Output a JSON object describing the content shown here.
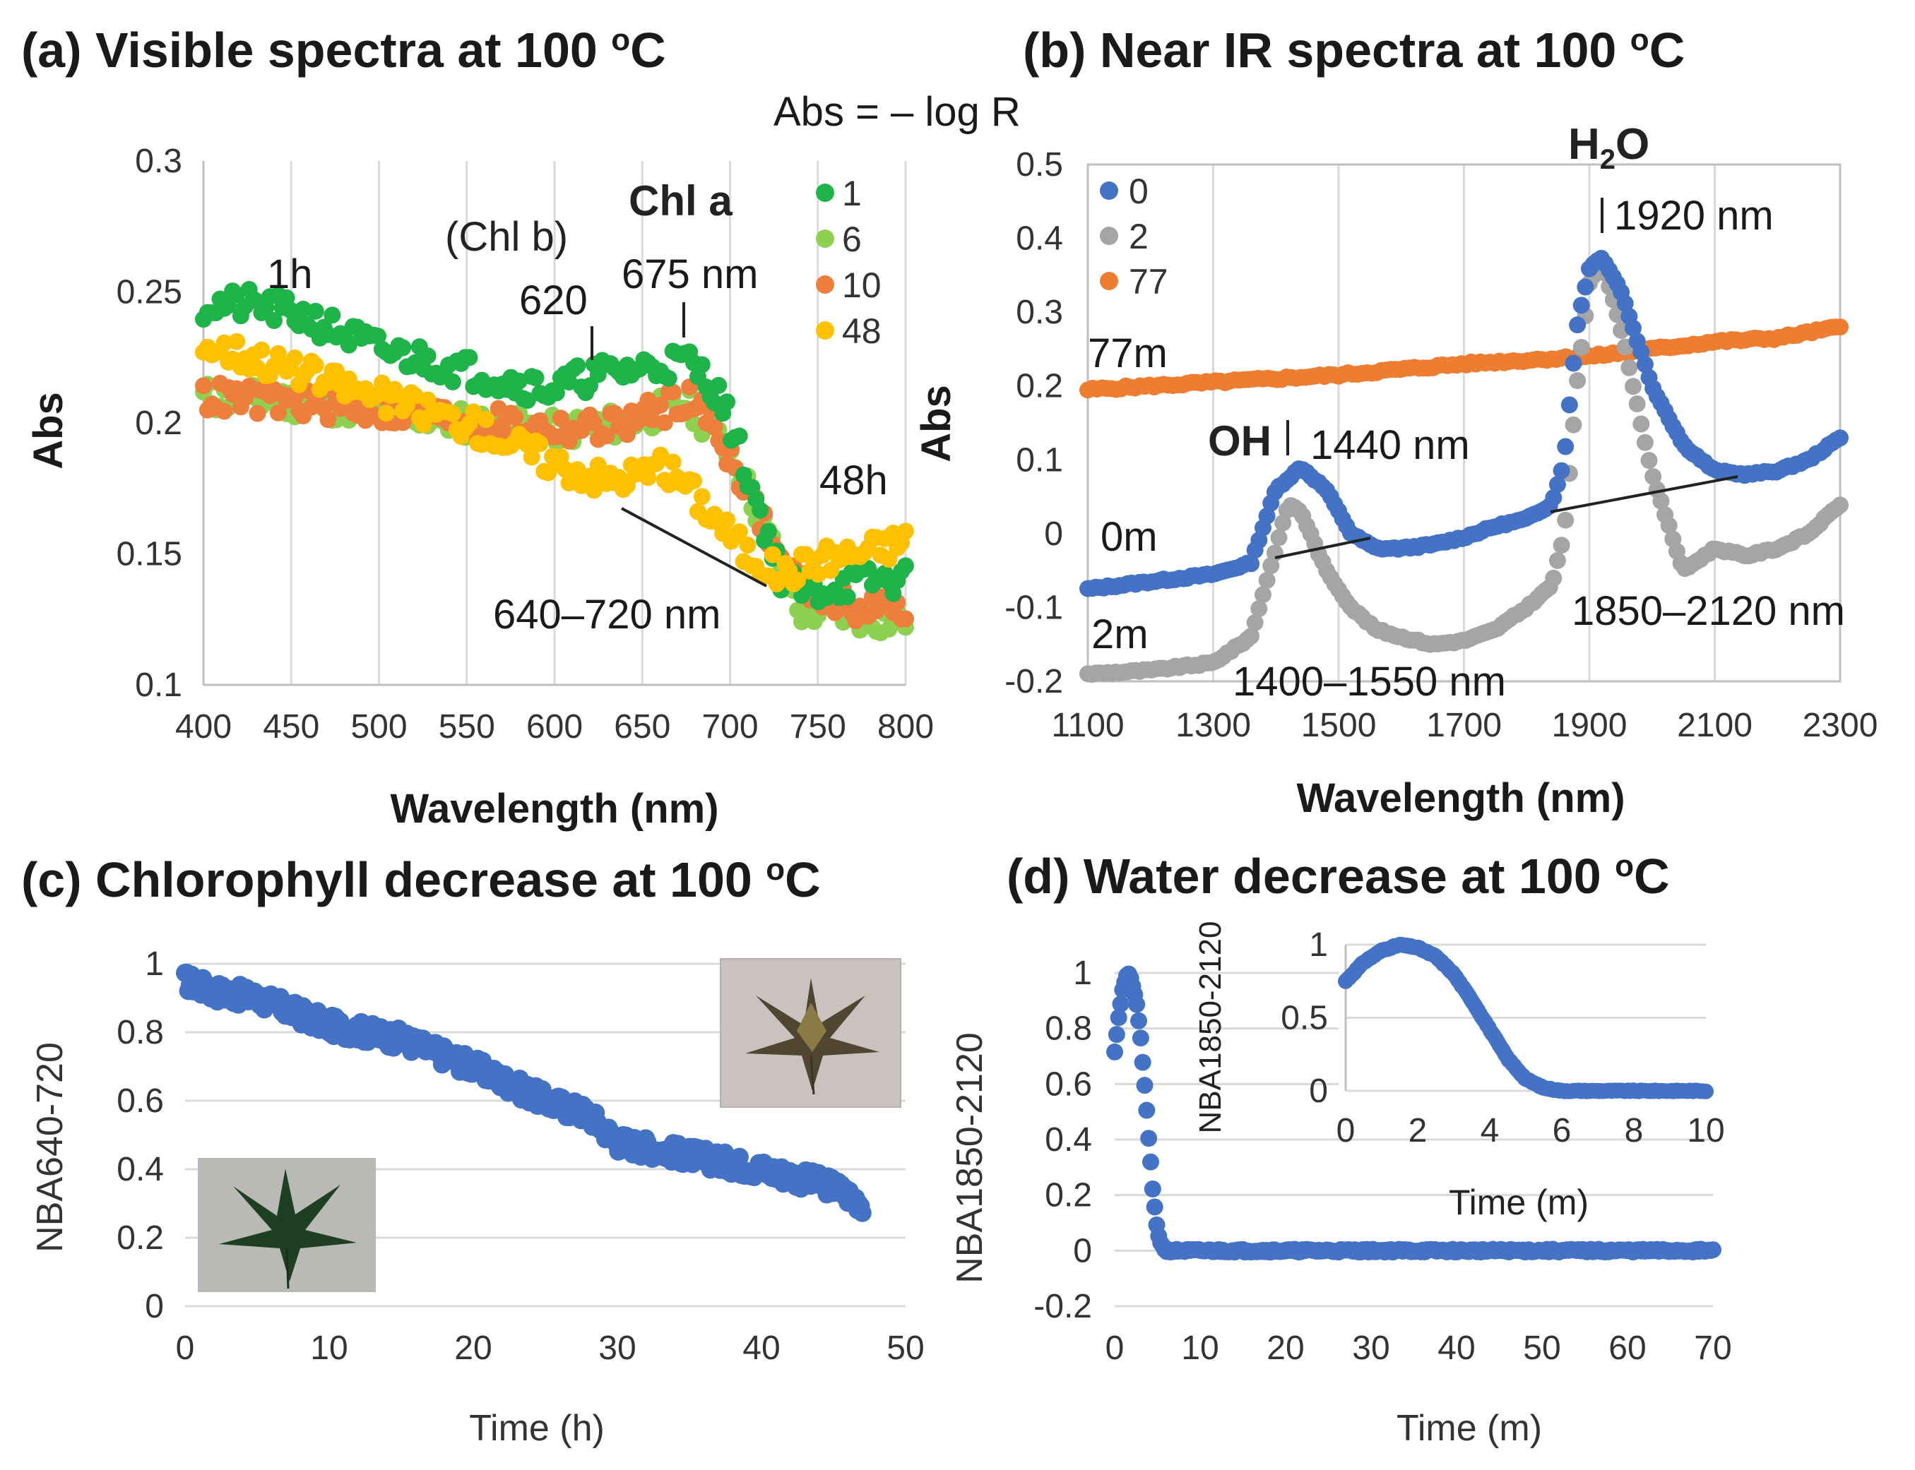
{
  "figure_label": "Abs = – log R",
  "colors": {
    "blue": "#4472C4",
    "gray": "#A5A5A5",
    "orange": "#ED7D31",
    "green": "#1FB449",
    "lightgreen": "#8ED151",
    "orange2": "#EE7E3B",
    "yellow": "#FFC000"
  },
  "chart_data": [
    {
      "id": "a",
      "type": "scatter",
      "title_prefix": "(a) Visible spectra at 100 ",
      "title_sup": "o",
      "title_suffix": "C",
      "xlabel": "Wavelength (nm)",
      "ylabel": "Abs",
      "xlim": [
        400,
        800
      ],
      "ylim": [
        0.1,
        0.3
      ],
      "xticks": [
        "400",
        "450",
        "500",
        "550",
        "600",
        "650",
        "700",
        "750",
        "800"
      ],
      "yticks": [
        "0.1",
        "0.15",
        "0.2",
        "0.25",
        "0.3"
      ],
      "legend": [
        "1",
        "6",
        "10",
        "48"
      ],
      "series": [
        {
          "name": "1",
          "color": "#1FB449",
          "x": [
            400,
            430,
            460,
            500,
            540,
            580,
            600,
            620,
            640,
            660,
            675,
            690,
            700,
            715,
            730,
            745,
            760,
            780,
            800
          ],
          "y": [
            0.245,
            0.245,
            0.24,
            0.228,
            0.222,
            0.215,
            0.213,
            0.218,
            0.22,
            0.222,
            0.224,
            0.215,
            0.2,
            0.17,
            0.14,
            0.135,
            0.138,
            0.14,
            0.14
          ]
        },
        {
          "name": "6",
          "color": "#8ED151",
          "x": [
            400,
            450,
            500,
            550,
            600,
            640,
            675,
            700,
            720,
            740,
            760,
            780,
            800
          ],
          "y": [
            0.21,
            0.208,
            0.205,
            0.2,
            0.197,
            0.2,
            0.208,
            0.19,
            0.16,
            0.128,
            0.128,
            0.125,
            0.125
          ]
        },
        {
          "name": "10",
          "color": "#EE7E3B",
          "x": [
            400,
            450,
            500,
            550,
            600,
            620,
            640,
            660,
            675,
            690,
            710,
            730,
            750,
            770,
            800
          ],
          "y": [
            0.21,
            0.208,
            0.205,
            0.201,
            0.198,
            0.198,
            0.2,
            0.205,
            0.21,
            0.2,
            0.175,
            0.145,
            0.135,
            0.13,
            0.13
          ]
        },
        {
          "name": "48",
          "color": "#FFC000",
          "x": [
            400,
            430,
            460,
            500,
            550,
            600,
            630,
            660,
            670,
            690,
            710,
            730,
            750,
            770,
            800
          ],
          "y": [
            0.23,
            0.225,
            0.218,
            0.21,
            0.2,
            0.185,
            0.178,
            0.182,
            0.18,
            0.165,
            0.15,
            0.142,
            0.148,
            0.15,
            0.155
          ]
        }
      ],
      "annotations": {
        "chl_a": "Chl a",
        "chl_b": "(Chl b)",
        "h1": "1h",
        "p620": "620",
        "p675": "675 nm",
        "h48": "48h",
        "range": "640–720 nm"
      }
    },
    {
      "id": "b",
      "type": "scatter",
      "title_prefix": "(b) Near IR spectra at 100 ",
      "title_sup": "o",
      "title_suffix": "C",
      "xlabel": "Wavelength (nm)",
      "ylabel": "Abs",
      "xlim": [
        1100,
        2300
      ],
      "ylim": [
        -0.2,
        0.5
      ],
      "xticks": [
        "1100",
        "1300",
        "1500",
        "1700",
        "1900",
        "2100",
        "2300"
      ],
      "yticks": [
        "-0.2",
        "-0.1",
        "0",
        "0.1",
        "0.2",
        "0.3",
        "0.4",
        "0.5"
      ],
      "legend": [
        "0",
        "2",
        "77"
      ],
      "series": [
        {
          "name": "0",
          "color": "#4472C4",
          "x": [
            1100,
            1200,
            1300,
            1360,
            1400,
            1440,
            1480,
            1520,
            1560,
            1600,
            1650,
            1700,
            1750,
            1800,
            1840,
            1860,
            1880,
            1900,
            1920,
            1950,
            2000,
            2050,
            2100,
            2150,
            2200,
            2250,
            2300
          ],
          "y": [
            -0.075,
            -0.065,
            -0.055,
            -0.04,
            0.06,
            0.09,
            0.06,
            0.0,
            -0.02,
            -0.02,
            -0.015,
            -0.005,
            0.01,
            0.02,
            0.04,
            0.1,
            0.28,
            0.36,
            0.375,
            0.33,
            0.2,
            0.12,
            0.085,
            0.08,
            0.085,
            0.1,
            0.13
          ]
        },
        {
          "name": "2",
          "color": "#A5A5A5",
          "x": [
            1100,
            1200,
            1300,
            1360,
            1400,
            1420,
            1440,
            1480,
            1520,
            1560,
            1600,
            1650,
            1700,
            1750,
            1800,
            1840,
            1860,
            1880,
            1900,
            1920,
            1950,
            2000,
            2050,
            2100,
            2150,
            2200,
            2250,
            2300
          ],
          "y": [
            -0.19,
            -0.185,
            -0.175,
            -0.14,
            -0.02,
            0.04,
            0.03,
            -0.05,
            -0.1,
            -0.13,
            -0.14,
            -0.15,
            -0.145,
            -0.13,
            -0.1,
            -0.07,
            0.0,
            0.2,
            0.34,
            0.37,
            0.28,
            0.08,
            -0.05,
            -0.02,
            -0.03,
            -0.02,
            0.0,
            0.04
          ]
        },
        {
          "name": "77",
          "color": "#ED7D31",
          "x": [
            1100,
            1300,
            1500,
            1700,
            1900,
            2100,
            2200,
            2300
          ],
          "y": [
            0.195,
            0.205,
            0.215,
            0.23,
            0.24,
            0.26,
            0.265,
            0.28
          ]
        }
      ],
      "annotations": {
        "h2o": "H",
        "h2o_sub": "2",
        "h2o_o": "O",
        "p1920": "1920 nm",
        "oh": "OH",
        "p1440": "1440 nm",
        "m77": "77m",
        "m0": "0m",
        "m2": "2m",
        "r1": "1400–1550 nm",
        "r2": "1850–2120 nm"
      }
    },
    {
      "id": "c",
      "type": "scatter",
      "title_prefix": "(c) Chlorophyll decrease at 100 ",
      "title_sup": "o",
      "title_suffix": "C",
      "xlabel": "Time (h)",
      "ylabel": "NBA640-720",
      "xlim": [
        0,
        50
      ],
      "ylim": [
        0,
        1
      ],
      "xticks": [
        "0",
        "10",
        "20",
        "30",
        "40",
        "50"
      ],
      "yticks": [
        "0",
        "0.2",
        "0.4",
        "0.6",
        "0.8",
        "1"
      ],
      "series": [
        {
          "name": "NBA640-720",
          "color": "#4472C4",
          "x": [
            0,
            2,
            5,
            10,
            15,
            20,
            25,
            28,
            30,
            35,
            40,
            45,
            47
          ],
          "y": [
            0.95,
            0.92,
            0.9,
            0.82,
            0.78,
            0.7,
            0.6,
            0.56,
            0.48,
            0.44,
            0.4,
            0.35,
            0.3
          ]
        }
      ]
    },
    {
      "id": "d",
      "type": "scatter",
      "title_prefix": "(d) Water decrease at 100 ",
      "title_sup": "o",
      "title_suffix": "C",
      "xlabel": "Time (m)",
      "ylabel": "NBA1850-2120",
      "xlim": [
        0,
        70
      ],
      "ylim": [
        -0.2,
        1
      ],
      "xticks": [
        "0",
        "10",
        "20",
        "30",
        "40",
        "50",
        "60",
        "70"
      ],
      "yticks": [
        "-0.2",
        "0",
        "0.2",
        "0.4",
        "0.6",
        "0.8",
        "1"
      ],
      "series": [
        {
          "name": "NBA1850-2120",
          "color": "#4472C4",
          "x": [
            0,
            0.5,
            1,
            1.5,
            2,
            2.5,
            3,
            3.5,
            4,
            4.5,
            5,
            5.5,
            6,
            8,
            10,
            20,
            30,
            40,
            50,
            60,
            70
          ],
          "y": [
            0.72,
            0.85,
            0.95,
            1.0,
            0.97,
            0.9,
            0.78,
            0.6,
            0.4,
            0.2,
            0.07,
            0.02,
            0.0,
            0.0,
            0.0,
            0.0,
            0.0,
            0.0,
            0.0,
            0.0,
            0.0
          ]
        }
      ],
      "inset": {
        "xlabel": "Time (m)",
        "ylabel": "NBA1850-2120",
        "xlim": [
          0,
          10
        ],
        "ylim": [
          0,
          1
        ],
        "xticks": [
          "0",
          "2",
          "4",
          "6",
          "8",
          "10"
        ],
        "yticks": [
          "0",
          "0.5",
          "1"
        ],
        "x": [
          0,
          0.5,
          1,
          1.5,
          2,
          2.5,
          3,
          3.5,
          4,
          4.5,
          5,
          5.5,
          6,
          7,
          8,
          9,
          10
        ],
        "y": [
          0.75,
          0.88,
          0.96,
          1.0,
          0.98,
          0.92,
          0.8,
          0.62,
          0.42,
          0.22,
          0.08,
          0.02,
          0.0,
          0.0,
          0.0,
          0.0,
          0.0
        ]
      }
    }
  ]
}
